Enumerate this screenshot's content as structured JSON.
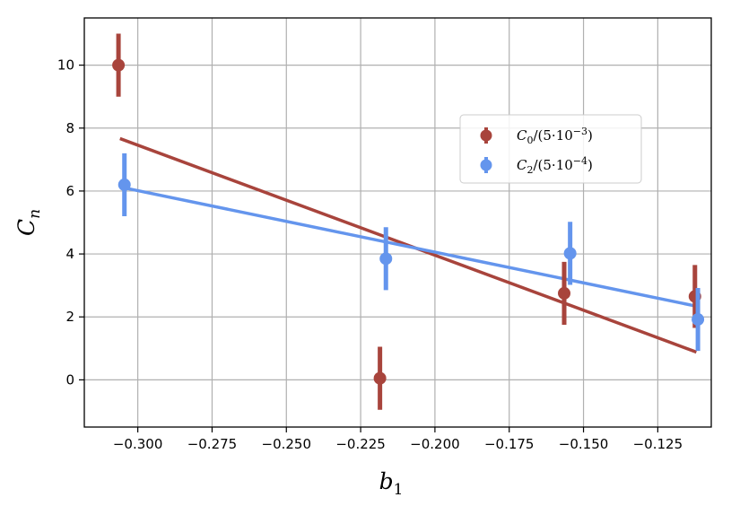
{
  "chart_data": {
    "type": "scatter",
    "xlabel": "b",
    "xlabel_sub": "1",
    "ylabel": "C",
    "ylabel_sub": "n",
    "xlim": [
      -0.318,
      -0.107
    ],
    "ylim": [
      -1.5,
      11.5
    ],
    "xticks": [
      -0.3,
      -0.275,
      -0.25,
      -0.225,
      -0.2,
      -0.175,
      -0.15,
      -0.125
    ],
    "xtick_labels": [
      "−0.300",
      "−0.275",
      "−0.250",
      "−0.225",
      "−0.200",
      "−0.175",
      "−0.150",
      "−0.125"
    ],
    "yticks": [
      0,
      2,
      4,
      6,
      8,
      10
    ],
    "ytick_labels": [
      "0",
      "2",
      "4",
      "6",
      "8",
      "10"
    ],
    "grid": true,
    "legend_position": "upper-right",
    "series": [
      {
        "name": "C0/(5·10⁻³)",
        "legend_main": "C",
        "legend_sub": "0",
        "legend_rest": "/(5·10",
        "legend_sup": "−3",
        "legend_close": ")",
        "color": "#a8443c",
        "x": [
          -0.3065,
          -0.2185,
          -0.1565,
          -0.1125
        ],
        "y": [
          10.0,
          0.05,
          2.75,
          2.65
        ],
        "yerr": [
          1.0,
          1.0,
          1.0,
          1.0
        ],
        "fit": {
          "x": [
            -0.3055,
            -0.1125
          ],
          "y": [
            7.65,
            0.9
          ]
        }
      },
      {
        "name": "C2/(5·10⁻⁴)",
        "legend_main": "C",
        "legend_sub": "2",
        "legend_rest": "/(5·10",
        "legend_sup": "−4",
        "legend_close": ")",
        "color": "#6495ed",
        "x": [
          -0.3045,
          -0.2165,
          -0.1545,
          -0.1115
        ],
        "y": [
          6.2,
          3.85,
          4.02,
          1.92
        ],
        "yerr": [
          1.0,
          1.0,
          1.0,
          1.0
        ],
        "fit": {
          "x": [
            -0.3045,
            -0.1125
          ],
          "y": [
            6.1,
            2.35
          ]
        }
      }
    ]
  }
}
